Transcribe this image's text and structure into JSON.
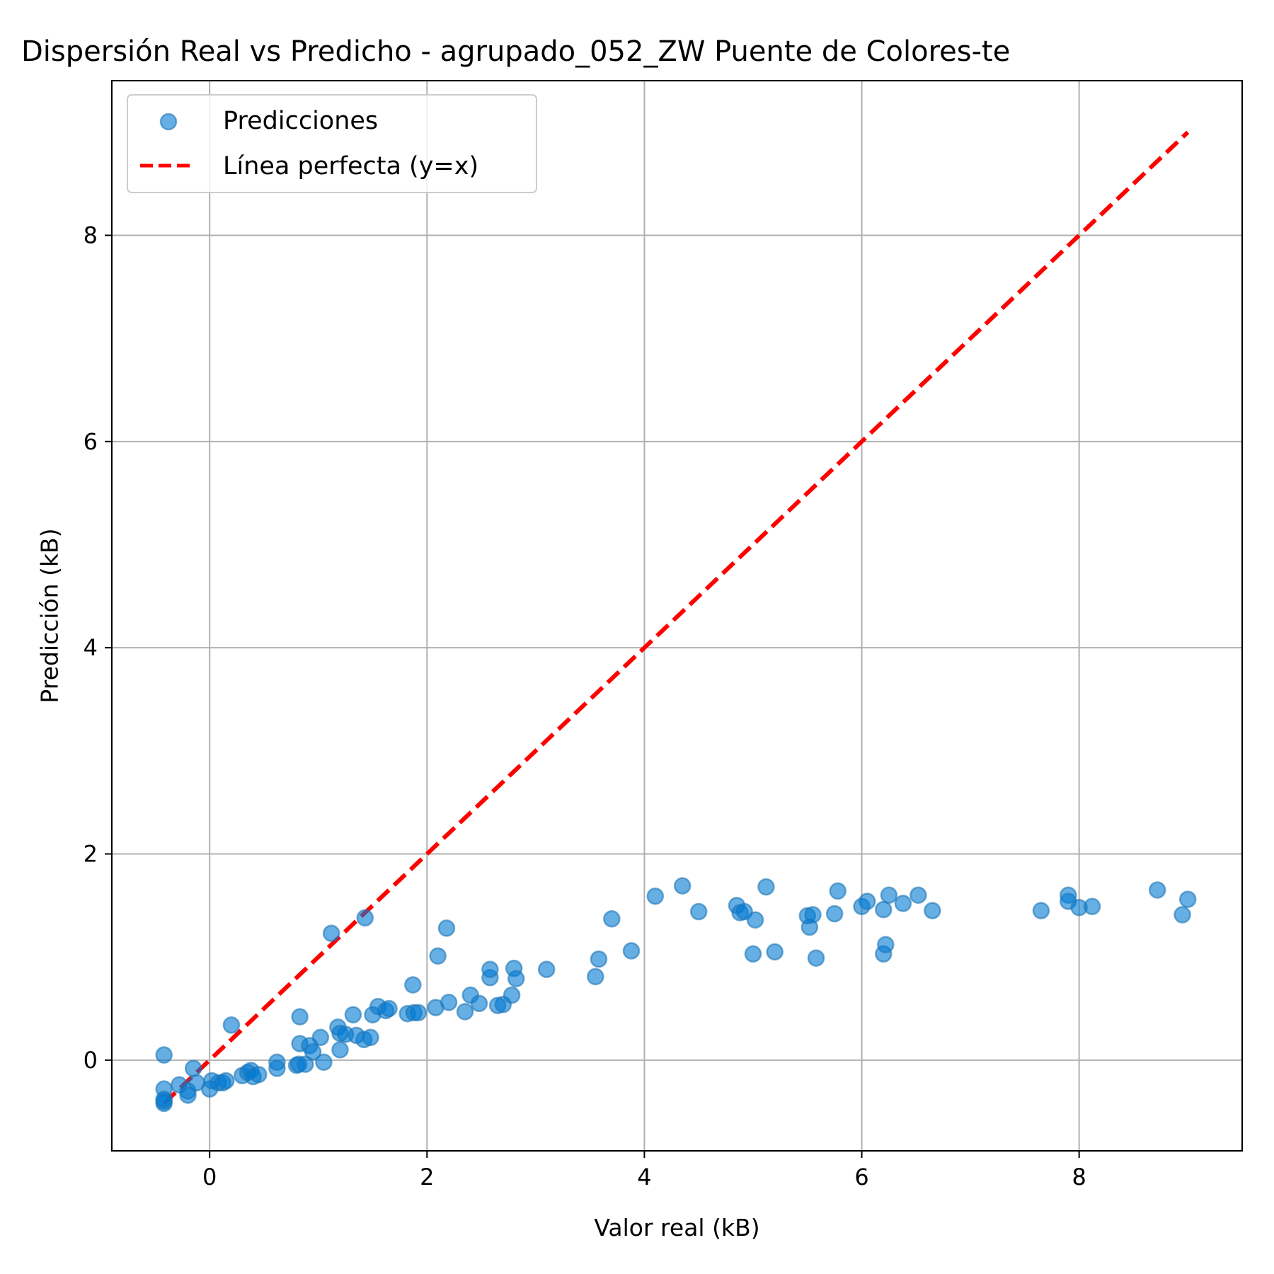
{
  "colors": {
    "points": "#1f77b4",
    "points_fill": "#0079d3",
    "perfect_line": "#ff0000",
    "grid": "#b0b0b0"
  },
  "chart_data": {
    "type": "scatter",
    "title": "Dispersión Real vs Predicho - agrupado_052_ZW Puente de Colores-te",
    "xlabel": "Valor real (kB)",
    "ylabel": "Predicción (kB)",
    "xlim": [
      -0.9,
      9.5
    ],
    "ylim": [
      -0.88,
      9.5
    ],
    "xticks": [
      0,
      2,
      4,
      6,
      8
    ],
    "yticks": [
      0,
      2,
      4,
      6,
      8
    ],
    "grid": true,
    "legend_position": "top-left",
    "series": [
      {
        "name": "Predicciones",
        "kind": "scatter",
        "points": [
          [
            -0.42,
            0.05
          ],
          [
            -0.42,
            -0.28
          ],
          [
            -0.42,
            -0.4
          ],
          [
            -0.42,
            -0.42
          ],
          [
            -0.42,
            -0.38
          ],
          [
            -0.28,
            -0.24
          ],
          [
            -0.2,
            -0.3
          ],
          [
            -0.2,
            -0.34
          ],
          [
            -0.15,
            -0.08
          ],
          [
            -0.12,
            -0.22
          ],
          [
            0.0,
            -0.28
          ],
          [
            0.02,
            -0.2
          ],
          [
            0.08,
            -0.22
          ],
          [
            0.12,
            -0.22
          ],
          [
            0.15,
            -0.2
          ],
          [
            0.2,
            0.34
          ],
          [
            0.3,
            -0.15
          ],
          [
            0.35,
            -0.12
          ],
          [
            0.38,
            -0.1
          ],
          [
            0.4,
            -0.16
          ],
          [
            0.45,
            -0.14
          ],
          [
            0.62,
            -0.02
          ],
          [
            0.62,
            -0.08
          ],
          [
            0.8,
            -0.05
          ],
          [
            0.82,
            -0.04
          ],
          [
            0.83,
            0.42
          ],
          [
            0.83,
            0.16
          ],
          [
            0.88,
            -0.04
          ],
          [
            0.92,
            0.14
          ],
          [
            0.95,
            0.08
          ],
          [
            1.02,
            0.22
          ],
          [
            1.05,
            -0.02
          ],
          [
            1.12,
            1.23
          ],
          [
            1.18,
            0.32
          ],
          [
            1.2,
            0.1
          ],
          [
            1.2,
            0.26
          ],
          [
            1.25,
            0.25
          ],
          [
            1.32,
            0.44
          ],
          [
            1.35,
            0.24
          ],
          [
            1.42,
            0.2
          ],
          [
            1.43,
            1.38
          ],
          [
            1.48,
            0.22
          ],
          [
            1.5,
            0.44
          ],
          [
            1.55,
            0.52
          ],
          [
            1.62,
            0.48
          ],
          [
            1.65,
            0.5
          ],
          [
            1.82,
            0.45
          ],
          [
            1.87,
            0.73
          ],
          [
            1.88,
            0.46
          ],
          [
            1.92,
            0.46
          ],
          [
            2.08,
            0.51
          ],
          [
            2.1,
            1.01
          ],
          [
            2.18,
            1.28
          ],
          [
            2.2,
            0.56
          ],
          [
            2.35,
            0.47
          ],
          [
            2.4,
            0.63
          ],
          [
            2.48,
            0.55
          ],
          [
            2.58,
            0.8
          ],
          [
            2.58,
            0.88
          ],
          [
            2.65,
            0.53
          ],
          [
            2.7,
            0.54
          ],
          [
            2.78,
            0.63
          ],
          [
            2.8,
            0.89
          ],
          [
            2.82,
            0.79
          ],
          [
            3.1,
            0.88
          ],
          [
            3.55,
            0.81
          ],
          [
            3.58,
            0.98
          ],
          [
            3.7,
            1.37
          ],
          [
            3.88,
            1.06
          ],
          [
            4.1,
            1.59
          ],
          [
            4.35,
            1.69
          ],
          [
            4.5,
            1.44
          ],
          [
            4.85,
            1.5
          ],
          [
            4.88,
            1.43
          ],
          [
            4.92,
            1.44
          ],
          [
            5.02,
            1.36
          ],
          [
            5.0,
            1.03
          ],
          [
            5.12,
            1.68
          ],
          [
            5.2,
            1.05
          ],
          [
            5.5,
            1.4
          ],
          [
            5.52,
            1.29
          ],
          [
            5.55,
            1.41
          ],
          [
            5.58,
            0.99
          ],
          [
            5.75,
            1.42
          ],
          [
            5.78,
            1.64
          ],
          [
            6.0,
            1.49
          ],
          [
            6.05,
            1.54
          ],
          [
            6.2,
            1.46
          ],
          [
            6.2,
            1.03
          ],
          [
            6.22,
            1.12
          ],
          [
            6.25,
            1.6
          ],
          [
            6.38,
            1.52
          ],
          [
            6.52,
            1.6
          ],
          [
            6.65,
            1.45
          ],
          [
            7.65,
            1.45
          ],
          [
            7.9,
            1.6
          ],
          [
            7.9,
            1.54
          ],
          [
            8.0,
            1.48
          ],
          [
            8.12,
            1.49
          ],
          [
            8.72,
            1.65
          ],
          [
            8.95,
            1.41
          ],
          [
            9.0,
            1.56
          ]
        ]
      },
      {
        "name": "Línea perfecta (y=x)",
        "kind": "line",
        "style": "dashed",
        "points": [
          [
            -0.42,
            -0.42
          ],
          [
            9.0,
            9.0
          ]
        ]
      }
    ]
  }
}
